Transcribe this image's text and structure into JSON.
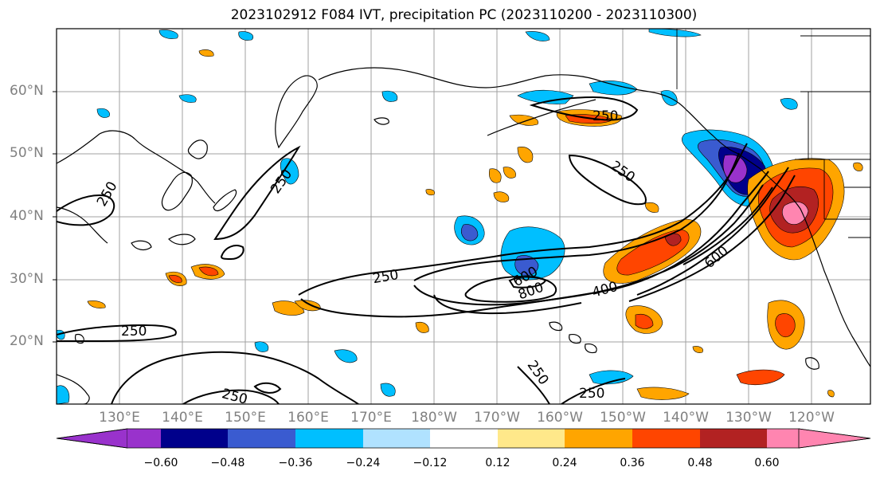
{
  "title": "2023102912 F084 IVT, precipitation PC (2023110200 - 2023110300)",
  "lat_labels": [
    "60°N",
    "50°N",
    "40°N",
    "30°N",
    "20°N"
  ],
  "lon_labels": [
    "130°E",
    "140°E",
    "150°E",
    "160°E",
    "170°E",
    "180°W",
    "170°W",
    "160°W",
    "150°W",
    "140°W",
    "130°W",
    "120°W"
  ],
  "contour_labels": [
    "250",
    "250",
    "250",
    "250",
    "250",
    "250",
    "250",
    "250",
    "250",
    "600",
    "800",
    "400",
    "600"
  ],
  "colorbar": {
    "ticks": [
      "−0.60",
      "−0.48",
      "−0.36",
      "−0.24",
      "−0.12",
      "0.12",
      "0.24",
      "0.36",
      "0.48",
      "0.60"
    ],
    "colors": [
      "#9932cc",
      "#00008b",
      "#3a5bd0",
      "#00bfff",
      "#b0e2ff",
      "#ffffff",
      "#ffe88a",
      "#ffa500",
      "#ff4500",
      "#b22222",
      "#ff85b0"
    ]
  },
  "palette": {
    "neg_dark": "#00008b",
    "neg_mid": "#3a5bd0",
    "neg_light": "#00bfff",
    "neg_pale": "#b0e2ff",
    "neg_purple": "#9932cc",
    "pos_pale": "#ffe88a",
    "pos_light": "#ffa500",
    "pos_mid": "#ff4500",
    "pos_dark": "#b22222",
    "pos_pink": "#ff85b0"
  }
}
